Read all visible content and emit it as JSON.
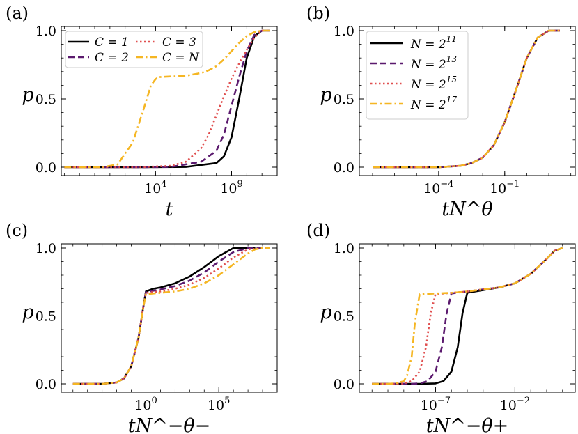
{
  "figure": {
    "series_styles": [
      {
        "color": "#000000",
        "dash": ""
      },
      {
        "color": "#5b1a6e",
        "dash": "9,5"
      },
      {
        "color": "#e04f4f",
        "dash": "2.5,3.5"
      },
      {
        "color": "#f5b623",
        "dash": "10,4,2.5,4"
      }
    ]
  },
  "chart_data": [
    {
      "panel": "(a)",
      "type": "line",
      "xscale": "log10",
      "xlim_log10": [
        -2.2,
        12.0
      ],
      "ylim": [
        -0.05,
        1.0
      ],
      "xlabel": "t",
      "ylabel": "p",
      "xticks": [
        {
          "log10": 4,
          "base": "10",
          "exp": "4"
        },
        {
          "log10": 9,
          "base": "10",
          "exp": "9"
        }
      ],
      "yticks": [
        {
          "v": 0.0,
          "label": "0.0"
        },
        {
          "v": 0.5,
          "label": "0.5"
        },
        {
          "v": 1.0,
          "label": "1.0"
        }
      ],
      "legend": {
        "position": "upper-left",
        "columns": 2
      },
      "series": [
        {
          "name": "C = 1",
          "style": 0,
          "x_log10": [
            -2,
            3,
            6,
            8,
            8.5,
            9,
            9.5,
            10,
            10.5,
            11,
            11.5
          ],
          "y": [
            0,
            0,
            0.002,
            0.03,
            0.08,
            0.22,
            0.5,
            0.8,
            0.96,
            1.0,
            1.0
          ]
        },
        {
          "name": "C = 2",
          "style": 1,
          "x_log10": [
            -2,
            3,
            5,
            7,
            8,
            8.5,
            9,
            9.5,
            10,
            10.5,
            11,
            11.5
          ],
          "y": [
            0,
            0,
            0.002,
            0.04,
            0.12,
            0.24,
            0.45,
            0.66,
            0.85,
            0.97,
            1.0,
            1.0
          ]
        },
        {
          "name": "C = 3",
          "style": 2,
          "x_log10": [
            -2,
            3,
            5,
            6,
            7,
            7.5,
            8,
            8.5,
            9,
            9.5,
            10,
            10.5,
            11,
            11.5
          ],
          "y": [
            0,
            0,
            0.01,
            0.04,
            0.14,
            0.24,
            0.38,
            0.52,
            0.65,
            0.76,
            0.86,
            0.95,
            1.0,
            1.0
          ]
        },
        {
          "name": "C = N",
          "style": 3,
          "x_log10": [
            -2,
            0.5,
            1.5,
            2.5,
            3.2,
            3.7,
            4.0,
            4.2,
            5,
            6,
            7,
            7.5,
            8,
            8.5,
            9,
            9.5,
            10,
            10.5,
            11,
            11.5
          ],
          "y": [
            0,
            0,
            0.02,
            0.18,
            0.42,
            0.6,
            0.645,
            0.66,
            0.665,
            0.67,
            0.69,
            0.71,
            0.74,
            0.79,
            0.85,
            0.91,
            0.96,
            0.99,
            1.0,
            1.0
          ]
        }
      ]
    },
    {
      "panel": "(b)",
      "type": "line",
      "xscale": "log10",
      "xlim_log10": [
        -7.6,
        2.2
      ],
      "ylim": [
        -0.05,
        1.0
      ],
      "xlabel": "tN^θ",
      "ylabel": "p",
      "xticks": [
        {
          "log10": -4,
          "base": "10",
          "exp": "−4"
        },
        {
          "log10": -1,
          "base": "10",
          "exp": "−1"
        }
      ],
      "yticks": [
        {
          "v": 0.0,
          "label": "0.0"
        },
        {
          "v": 0.5,
          "label": "0.5"
        },
        {
          "v": 1.0,
          "label": "1.0"
        }
      ],
      "legend": {
        "position": "upper-left",
        "columns": 1
      },
      "series": [
        {
          "name": "N = 2^11",
          "base": "N = 2",
          "exp": "11",
          "style": 0,
          "x_log10": [
            -7,
            -4,
            -3,
            -2.5,
            -2,
            -1.5,
            -1,
            -0.5,
            0,
            0.5,
            1,
            1.5
          ],
          "y": [
            0,
            0,
            0.01,
            0.03,
            0.07,
            0.16,
            0.33,
            0.56,
            0.8,
            0.95,
            1.0,
            1.0
          ]
        },
        {
          "name": "N = 2^13",
          "base": "N = 2",
          "exp": "13",
          "style": 1,
          "x_log10": [
            -7,
            -4,
            -3,
            -2.5,
            -2,
            -1.5,
            -1,
            -0.5,
            0,
            0.5,
            1,
            1.5
          ],
          "y": [
            0,
            0,
            0.01,
            0.03,
            0.07,
            0.16,
            0.33,
            0.56,
            0.8,
            0.95,
            1.0,
            1.0
          ]
        },
        {
          "name": "N = 2^15",
          "base": "N = 2",
          "exp": "15",
          "style": 2,
          "x_log10": [
            -7,
            -4,
            -3,
            -2.5,
            -2,
            -1.5,
            -1,
            -0.5,
            0,
            0.5,
            1,
            1.5
          ],
          "y": [
            0,
            0,
            0.01,
            0.03,
            0.07,
            0.16,
            0.33,
            0.56,
            0.8,
            0.95,
            1.0,
            1.0
          ]
        },
        {
          "name": "N = 2^17",
          "base": "N = 2",
          "exp": "17",
          "style": 3,
          "x_log10": [
            -7,
            -4,
            -3,
            -2.5,
            -2,
            -1.5,
            -1,
            -0.5,
            0,
            0.5,
            1,
            1.5
          ],
          "y": [
            0,
            0,
            0.01,
            0.03,
            0.07,
            0.16,
            0.33,
            0.56,
            0.8,
            0.95,
            1.0,
            1.0
          ]
        }
      ]
    },
    {
      "panel": "(c)",
      "type": "line",
      "xscale": "log10",
      "xlim_log10": [
        -5.8,
        9.0
      ],
      "ylim": [
        -0.05,
        1.0
      ],
      "xlabel": "tN^−θ−",
      "ylabel": "p",
      "xticks": [
        {
          "log10": 0,
          "base": "10",
          "exp": "0"
        },
        {
          "log10": 5,
          "base": "10",
          "exp": "5"
        }
      ],
      "yticks": [
        {
          "v": 0.0,
          "label": "0.0"
        },
        {
          "v": 0.5,
          "label": "0.5"
        },
        {
          "v": 1.0,
          "label": "1.0"
        }
      ],
      "series": [
        {
          "name": "C = 1",
          "style": 0,
          "x_log10": [
            -5,
            -3,
            -2,
            -1.5,
            -1,
            -0.5,
            -0.2,
            0,
            0.5,
            1,
            2,
            3,
            4,
            5,
            6,
            7,
            7.5
          ],
          "y": [
            0,
            0,
            0.01,
            0.04,
            0.13,
            0.34,
            0.55,
            0.68,
            0.7,
            0.71,
            0.74,
            0.79,
            0.86,
            0.94,
            1.0,
            1.0,
            1.0
          ]
        },
        {
          "name": "C = 2",
          "style": 1,
          "x_log10": [
            -5,
            -3,
            -2,
            -1.5,
            -1,
            -0.5,
            -0.2,
            0,
            0.5,
            1,
            2,
            3,
            4,
            5,
            6,
            7,
            8
          ],
          "y": [
            0,
            0,
            0.01,
            0.04,
            0.13,
            0.34,
            0.55,
            0.675,
            0.685,
            0.695,
            0.72,
            0.76,
            0.82,
            0.9,
            0.97,
            1.0,
            1.0
          ]
        },
        {
          "name": "C = 3",
          "style": 2,
          "x_log10": [
            -5,
            -3,
            -2,
            -1.5,
            -1,
            -0.5,
            -0.2,
            0,
            0.5,
            1,
            2,
            3,
            4,
            5,
            6,
            7,
            8.5
          ],
          "y": [
            0,
            0,
            0.01,
            0.04,
            0.13,
            0.34,
            0.55,
            0.67,
            0.675,
            0.68,
            0.7,
            0.73,
            0.78,
            0.85,
            0.93,
            0.99,
            1.0
          ]
        },
        {
          "name": "C = N",
          "style": 3,
          "x_log10": [
            -5,
            -3,
            -2,
            -1.5,
            -1,
            -0.5,
            -0.2,
            0,
            0.5,
            1,
            2,
            3,
            4,
            5,
            6,
            7,
            7.5,
            8,
            8.5
          ],
          "y": [
            0,
            0,
            0.01,
            0.04,
            0.13,
            0.34,
            0.55,
            0.66,
            0.665,
            0.67,
            0.68,
            0.7,
            0.74,
            0.8,
            0.88,
            0.96,
            0.99,
            1.0,
            1.0
          ]
        }
      ]
    },
    {
      "panel": "(d)",
      "type": "line",
      "xscale": "log10",
      "xlim_log10": [
        -11.8,
        1.8
      ],
      "ylim": [
        -0.05,
        1.0
      ],
      "xlabel": "tN^−θ+",
      "ylabel": "p",
      "xticks": [
        {
          "log10": -7,
          "base": "10",
          "exp": "−7"
        },
        {
          "log10": -2,
          "base": "10",
          "exp": "−2"
        }
      ],
      "yticks": [
        {
          "v": 0.0,
          "label": "0.0"
        },
        {
          "v": 0.5,
          "label": "0.5"
        },
        {
          "v": 1.0,
          "label": "1.0"
        }
      ],
      "series": [
        {
          "name": "C = 1",
          "style": 0,
          "x_log10": [
            -11,
            -8,
            -7,
            -6.5,
            -6,
            -5.6,
            -5.3,
            -5,
            -4,
            -3,
            -2,
            -1,
            0,
            0.5,
            1
          ],
          "y": [
            0,
            0,
            0.003,
            0.02,
            0.09,
            0.27,
            0.52,
            0.67,
            0.69,
            0.71,
            0.74,
            0.81,
            0.92,
            0.98,
            1.0
          ]
        },
        {
          "name": "C = 2",
          "style": 1,
          "x_log10": [
            -11,
            -8.5,
            -8,
            -7.5,
            -7,
            -6.6,
            -6.3,
            -6,
            -5,
            -4,
            -3,
            -2,
            -1,
            0,
            0.5,
            1
          ],
          "y": [
            0,
            0,
            0.003,
            0.02,
            0.09,
            0.27,
            0.52,
            0.665,
            0.68,
            0.695,
            0.71,
            0.74,
            0.81,
            0.92,
            0.98,
            1.0
          ]
        },
        {
          "name": "C = 3",
          "style": 2,
          "x_log10": [
            -11,
            -9.5,
            -9,
            -8.5,
            -8,
            -7.6,
            -7.3,
            -7,
            -6,
            -5,
            -4,
            -3,
            -2,
            -1,
            0,
            0.5,
            1
          ],
          "y": [
            0,
            0,
            0.003,
            0.02,
            0.09,
            0.27,
            0.52,
            0.66,
            0.67,
            0.68,
            0.695,
            0.71,
            0.74,
            0.81,
            0.92,
            0.98,
            1.0
          ]
        },
        {
          "name": "C = N",
          "style": 3,
          "x_log10": [
            -11,
            -10,
            -9.5,
            -9,
            -8.8,
            -8.5,
            -8.3,
            -8,
            -7,
            -6,
            -5,
            -4,
            -3,
            -2,
            -1,
            0,
            0.5,
            1
          ],
          "y": [
            0,
            0,
            0.003,
            0.02,
            0.06,
            0.2,
            0.45,
            0.66,
            0.665,
            0.67,
            0.68,
            0.695,
            0.71,
            0.74,
            0.81,
            0.92,
            0.98,
            1.0
          ]
        }
      ]
    }
  ]
}
